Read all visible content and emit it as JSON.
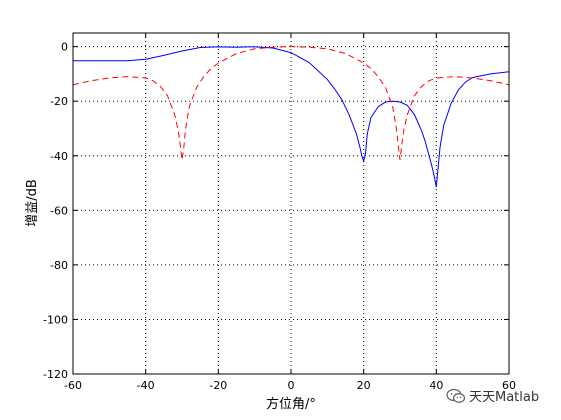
{
  "chart_data": {
    "type": "line",
    "xlabel": "方位角/°",
    "ylabel": "增益/dB",
    "xlim": [
      -60,
      60
    ],
    "ylim": [
      -120,
      5
    ],
    "xticks": [
      -60,
      -40,
      -20,
      0,
      20,
      40,
      60
    ],
    "yticks": [
      0,
      -20,
      -40,
      -60,
      -80,
      -100,
      -120
    ],
    "grid": true,
    "series": [
      {
        "style": "solid",
        "color": "#0000ff",
        "x": [
          -60,
          -45,
          -40,
          -35,
          -30,
          -25,
          -20,
          -15,
          -12,
          -10,
          -5,
          0,
          5,
          10,
          12,
          14,
          16,
          17,
          18,
          19,
          19.5,
          20,
          20.5,
          21,
          22,
          24,
          26,
          28,
          30,
          32,
          34,
          35,
          36,
          37,
          38,
          39,
          39.5,
          40,
          40.5,
          41,
          42,
          44,
          46,
          48,
          50,
          55,
          60
        ],
        "y": [
          -5.2,
          -5.2,
          -4.6,
          -3.2,
          -1.6,
          -0.3,
          -0.1,
          -0.2,
          -0.1,
          -0.1,
          -0.5,
          -2.2,
          -5.8,
          -12,
          -15.5,
          -19.5,
          -25,
          -28.5,
          -32,
          -37,
          -40,
          -42,
          -39,
          -32,
          -26,
          -22,
          -20.3,
          -20,
          -20.3,
          -21.5,
          -25,
          -28,
          -31,
          -35,
          -40,
          -45,
          -48,
          -51.5,
          -44,
          -37,
          -29,
          -21,
          -16,
          -13,
          -11.3,
          -10,
          -9.2
        ]
      },
      {
        "style": "dashed",
        "color": "#ff0000",
        "x": [
          -60,
          -55,
          -50,
          -45,
          -40,
          -38,
          -36,
          -34,
          -32,
          -31,
          -30.5,
          -30,
          -29.5,
          -29,
          -28,
          -26,
          -24,
          -22,
          -20,
          -15,
          -10,
          -5,
          0,
          5,
          10,
          15,
          20,
          22,
          24,
          26,
          28,
          29,
          29.5,
          30,
          30.5,
          31,
          32,
          34,
          36,
          38,
          40,
          45,
          50,
          55,
          60
        ],
        "y": [
          -14,
          -12.5,
          -11.5,
          -11,
          -11.5,
          -12.5,
          -14.5,
          -18,
          -25,
          -31,
          -36,
          -41.5,
          -37,
          -30,
          -22,
          -15,
          -11,
          -8,
          -6,
          -2.5,
          -0.8,
          -0.2,
          0,
          -0.2,
          -0.8,
          -2.5,
          -6,
          -8,
          -11,
          -15,
          -22,
          -30,
          -36,
          -41.5,
          -36,
          -31,
          -25,
          -18,
          -14.5,
          -12.5,
          -11.5,
          -11,
          -11.5,
          -12.5,
          -14
        ]
      }
    ]
  },
  "watermark": {
    "text": "天天Matlab",
    "icon": "wechat-icon"
  }
}
